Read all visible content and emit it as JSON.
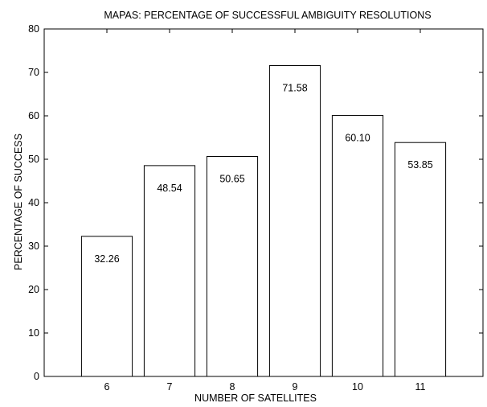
{
  "chart_data": {
    "type": "bar",
    "title": "MAPAS: PERCENTAGE OF SUCCESSFUL AMBIGUITY RESOLUTIONS",
    "xlabel": "NUMBER OF SATELLITES",
    "ylabel": "PERCENTAGE OF SUCCESS",
    "categories": [
      "6",
      "7",
      "8",
      "9",
      "10",
      "11"
    ],
    "values": [
      32.26,
      48.54,
      50.65,
      71.58,
      60.1,
      53.85
    ],
    "data_labels": [
      "32.26",
      "48.54",
      "50.65",
      "71.58",
      "60.10",
      "53.85"
    ],
    "xlim": [
      5,
      12
    ],
    "ylim": [
      0,
      80
    ],
    "yticks": [
      0,
      10,
      20,
      30,
      40,
      50,
      60,
      70,
      80
    ],
    "grid": false,
    "legend": "none",
    "bar_fill": "#ffffff",
    "bar_stroke": "#000000"
  }
}
